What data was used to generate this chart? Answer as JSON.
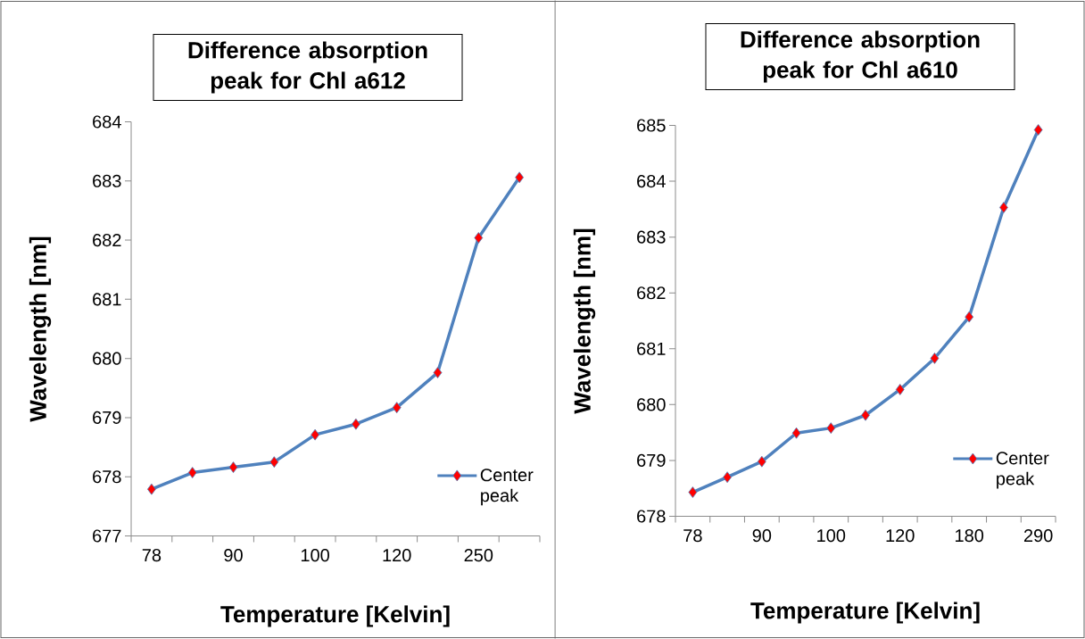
{
  "chart_data": [
    {
      "type": "line",
      "title": "Difference absorption peak for Chl a612",
      "xlabel": "Temperature [Kelvin]",
      "ylabel": "Wavelength [nm]",
      "categories": [
        "78",
        null,
        "90",
        null,
        "100",
        null,
        "120",
        null,
        "250",
        null
      ],
      "series": [
        {
          "name": "Center peak",
          "color": "#4f81bd",
          "values": [
            677.79,
            678.07,
            678.16,
            678.25,
            678.71,
            678.89,
            679.17,
            679.76,
            682.04,
            683.06
          ]
        }
      ],
      "ylim": [
        677,
        684
      ],
      "yticks": [
        677,
        678,
        679,
        680,
        681,
        682,
        683,
        684
      ],
      "grid": false,
      "legend": "bottom right",
      "marker": "diamond",
      "line_style": "solid"
    },
    {
      "type": "line",
      "title": "Difference absorption peak for Chl a610",
      "xlabel": "Temperature [Kelvin]",
      "ylabel": "Wavelength [nm]",
      "categories": [
        "78",
        null,
        "90",
        null,
        "100",
        null,
        "120",
        null,
        "180",
        null,
        "290"
      ],
      "series": [
        {
          "name": "Center peak",
          "color": "#4f81bd",
          "values": [
            678.43,
            678.7,
            678.98,
            679.49,
            679.58,
            679.81,
            680.27,
            680.83,
            681.57,
            683.53,
            684.92
          ]
        }
      ],
      "ylim": [
        678,
        685
      ],
      "yticks": [
        678,
        679,
        680,
        681,
        682,
        683,
        684,
        685
      ],
      "grid": false,
      "legend": "bottom right",
      "marker": "diamond",
      "line_style": "solid"
    }
  ]
}
